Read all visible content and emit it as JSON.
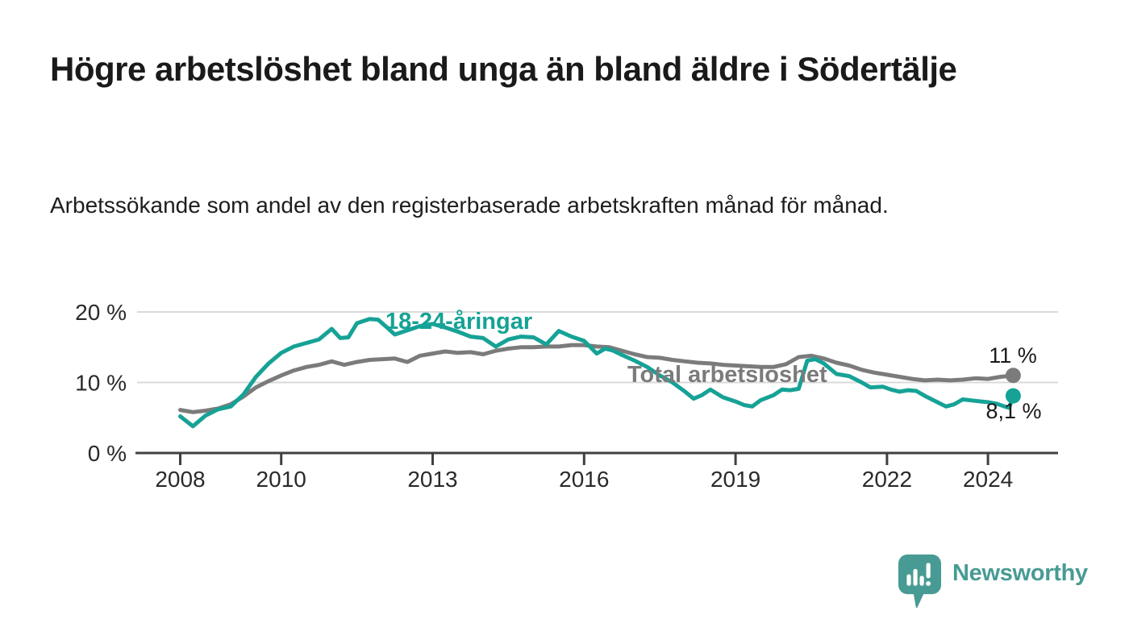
{
  "header": {
    "title": "Högre arbetslöshet bland unga än bland äldre i Södertälje",
    "subtitle": "Arbetssökande som andel av den registerbaserade arbetskraften månad för månad."
  },
  "branding": {
    "name": "Newsworthy",
    "logo_icon": "speech-bubble-bar-chart-icon",
    "logo_color": "#479b94"
  },
  "colors": {
    "young_series": "#16a296",
    "total_series": "#7b7b7b",
    "axis": "#404040",
    "grid": "#dadada",
    "text": "#1a1a1a"
  },
  "chart_data": {
    "type": "line",
    "title": "Högre arbetslöshet bland unga än bland äldre i Södertälje",
    "subtitle": "Arbetssökande som andel av den registerbaserade arbetskraften månad för månad.",
    "unit": "%",
    "grid": "horizontal gridlines at 10 and 20, x-axis baseline at 0",
    "legend_position": "inline labels on lines",
    "xlim": [
      2007.9,
      2025.4
    ],
    "ylim": [
      0,
      22
    ],
    "x_ticks": {
      "years": [
        2008,
        2010,
        2013,
        2016,
        2019,
        2022,
        2024
      ],
      "labels": [
        "2008",
        "2010",
        "2013",
        "2016",
        "2019",
        "2022",
        "2024"
      ]
    },
    "y_ticks": {
      "values": [
        0,
        10,
        20
      ],
      "labels": [
        "0 %",
        "10 %",
        "20 %"
      ]
    },
    "series": [
      {
        "name": "18-24-åringar",
        "label_text": "18-24-åringar",
        "color": "#16a296",
        "end_label": "8,1 %",
        "end_value": 8.1,
        "x": [
          2008.0,
          2008.25,
          2008.5,
          2008.75,
          2009.0,
          2009.25,
          2009.5,
          2009.75,
          2010.0,
          2010.25,
          2010.5,
          2010.75,
          2011.0,
          2011.17,
          2011.33,
          2011.5,
          2011.75,
          2011.92,
          2012.08,
          2012.25,
          2012.5,
          2012.75,
          2013.0,
          2013.25,
          2013.5,
          2013.75,
          2014.0,
          2014.25,
          2014.5,
          2014.75,
          2015.0,
          2015.25,
          2015.5,
          2015.75,
          2016.0,
          2016.25,
          2016.42,
          2016.58,
          2016.75,
          2017.0,
          2017.25,
          2017.5,
          2017.75,
          2018.0,
          2018.17,
          2018.33,
          2018.5,
          2018.75,
          2019.0,
          2019.17,
          2019.33,
          2019.5,
          2019.75,
          2019.92,
          2020.08,
          2020.25,
          2020.42,
          2020.58,
          2020.75,
          2021.0,
          2021.25,
          2021.5,
          2021.67,
          2021.92,
          2022.08,
          2022.25,
          2022.42,
          2022.58,
          2022.75,
          2023.0,
          2023.17,
          2023.33,
          2023.5,
          2023.75,
          2024.0,
          2024.17,
          2024.33,
          2024.42,
          2024.5
        ],
        "values": [
          5.2,
          3.8,
          5.3,
          6.2,
          6.6,
          8.3,
          10.8,
          12.7,
          14.2,
          15.1,
          15.6,
          16.1,
          17.6,
          16.3,
          16.4,
          18.4,
          19.0,
          18.9,
          17.9,
          16.8,
          17.4,
          18.0,
          18.3,
          17.8,
          17.2,
          16.5,
          16.3,
          15.1,
          16.1,
          16.5,
          16.4,
          15.4,
          17.3,
          16.5,
          15.9,
          14.1,
          14.8,
          14.5,
          13.9,
          13.1,
          12.2,
          11.0,
          10.0,
          8.7,
          7.7,
          8.2,
          9.0,
          7.9,
          7.3,
          6.8,
          6.6,
          7.5,
          8.2,
          9.0,
          8.9,
          9.1,
          13.1,
          13.3,
          12.7,
          11.2,
          10.9,
          10.0,
          9.3,
          9.4,
          9.0,
          8.7,
          8.9,
          8.8,
          8.1,
          7.2,
          6.6,
          6.9,
          7.6,
          7.4,
          7.2,
          7.0,
          6.6,
          6.4,
          8.1
        ]
      },
      {
        "name": "Total arbetslöshet",
        "label_text": "Total arbetslöshet",
        "color": "#7b7b7b",
        "end_label": "11 %",
        "end_value": 11,
        "x": [
          2008.0,
          2008.25,
          2008.5,
          2008.75,
          2009.0,
          2009.25,
          2009.5,
          2009.75,
          2010.0,
          2010.25,
          2010.5,
          2010.75,
          2011.0,
          2011.25,
          2011.5,
          2011.75,
          2012.0,
          2012.25,
          2012.5,
          2012.75,
          2013.0,
          2013.25,
          2013.5,
          2013.75,
          2014.0,
          2014.25,
          2014.5,
          2014.75,
          2015.0,
          2015.25,
          2015.5,
          2015.75,
          2016.0,
          2016.25,
          2016.5,
          2016.75,
          2017.0,
          2017.25,
          2017.5,
          2017.75,
          2018.0,
          2018.25,
          2018.5,
          2018.75,
          2019.0,
          2019.25,
          2019.5,
          2019.75,
          2020.0,
          2020.25,
          2020.5,
          2020.75,
          2021.0,
          2021.25,
          2021.5,
          2021.75,
          2022.0,
          2022.25,
          2022.5,
          2022.75,
          2023.0,
          2023.25,
          2023.5,
          2023.75,
          2024.0,
          2024.25,
          2024.5
        ],
        "values": [
          6.1,
          5.8,
          6.0,
          6.3,
          6.9,
          8.0,
          9.3,
          10.2,
          11.0,
          11.7,
          12.2,
          12.5,
          13.0,
          12.5,
          12.9,
          13.2,
          13.3,
          13.4,
          12.9,
          13.8,
          14.1,
          14.4,
          14.2,
          14.3,
          14.0,
          14.5,
          14.8,
          15.0,
          15.0,
          15.1,
          15.1,
          15.3,
          15.3,
          15.1,
          15.0,
          14.5,
          14.0,
          13.6,
          13.5,
          13.2,
          13.0,
          12.8,
          12.7,
          12.5,
          12.4,
          12.3,
          12.2,
          12.2,
          12.6,
          13.6,
          13.8,
          13.4,
          12.8,
          12.4,
          11.8,
          11.4,
          11.1,
          10.8,
          10.5,
          10.3,
          10.4,
          10.3,
          10.4,
          10.6,
          10.5,
          10.8,
          11.0
        ]
      }
    ]
  }
}
